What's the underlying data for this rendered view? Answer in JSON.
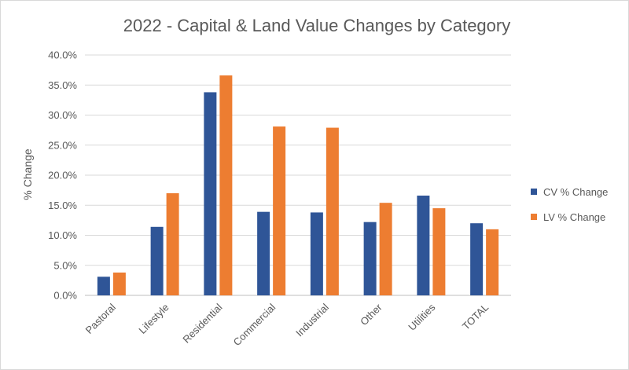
{
  "chart_data": {
    "type": "bar",
    "title": "2022 - Capital & Land Value Changes by Category",
    "xlabel": "",
    "ylabel": "% Change",
    "ylim": [
      0,
      40
    ],
    "ytick_labels": [
      "0.0%",
      "5.0%",
      "10.0%",
      "15.0%",
      "20.0%",
      "25.0%",
      "30.0%",
      "35.0%",
      "40.0%"
    ],
    "categories": [
      "Pastoral",
      "Lifestyle",
      "Residential",
      "Commercial",
      "Industrial",
      "Other",
      "Utilities",
      "TOTAL"
    ],
    "series": [
      {
        "name": "CV % Change",
        "color": "#2f5597",
        "values": [
          3.1,
          11.4,
          33.8,
          13.9,
          13.8,
          12.2,
          16.6,
          12.0
        ]
      },
      {
        "name": "LV % Change",
        "color": "#ed7d31",
        "values": [
          3.8,
          17.0,
          36.6,
          28.1,
          27.9,
          15.4,
          14.5,
          11.0
        ]
      }
    ],
    "grid": true,
    "legend_position": "right"
  }
}
